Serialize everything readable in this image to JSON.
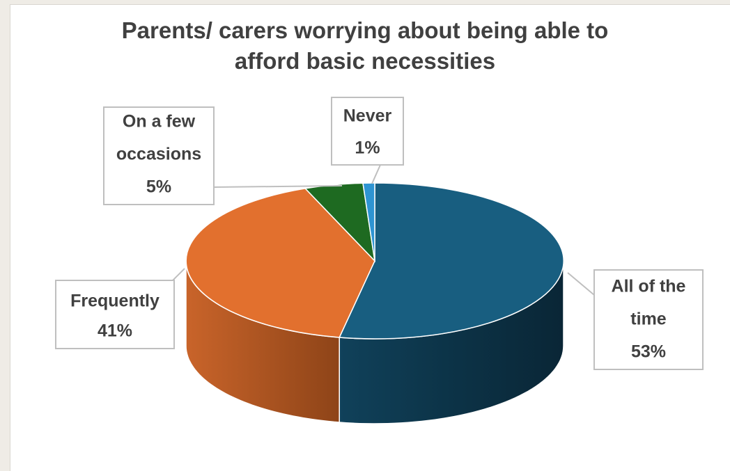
{
  "chart_data": {
    "type": "pie",
    "title_lines": [
      "Parents/ carers worrying about being able to",
      "afford basic necessities"
    ],
    "title": "Parents/ carers worrying about being able to afford basic necessities",
    "slices": [
      {
        "name": "All of the time",
        "label_lines": [
          "All of the",
          "time"
        ],
        "value": 53,
        "value_label": "53%",
        "color": "#185e80"
      },
      {
        "name": "Frequently",
        "label_lines": [
          "Frequently"
        ],
        "value": 41,
        "value_label": "41%",
        "color": "#e2702e"
      },
      {
        "name": "On a few occasions",
        "label_lines": [
          "On a few",
          "occasions"
        ],
        "value": 5,
        "value_label": "5%",
        "color": "#1e6a21"
      },
      {
        "name": "Never",
        "label_lines": [
          "Never"
        ],
        "value": 1,
        "value_label": "1%",
        "color": "#2e94d2"
      }
    ],
    "style": "3d-pie",
    "legend": "none"
  }
}
